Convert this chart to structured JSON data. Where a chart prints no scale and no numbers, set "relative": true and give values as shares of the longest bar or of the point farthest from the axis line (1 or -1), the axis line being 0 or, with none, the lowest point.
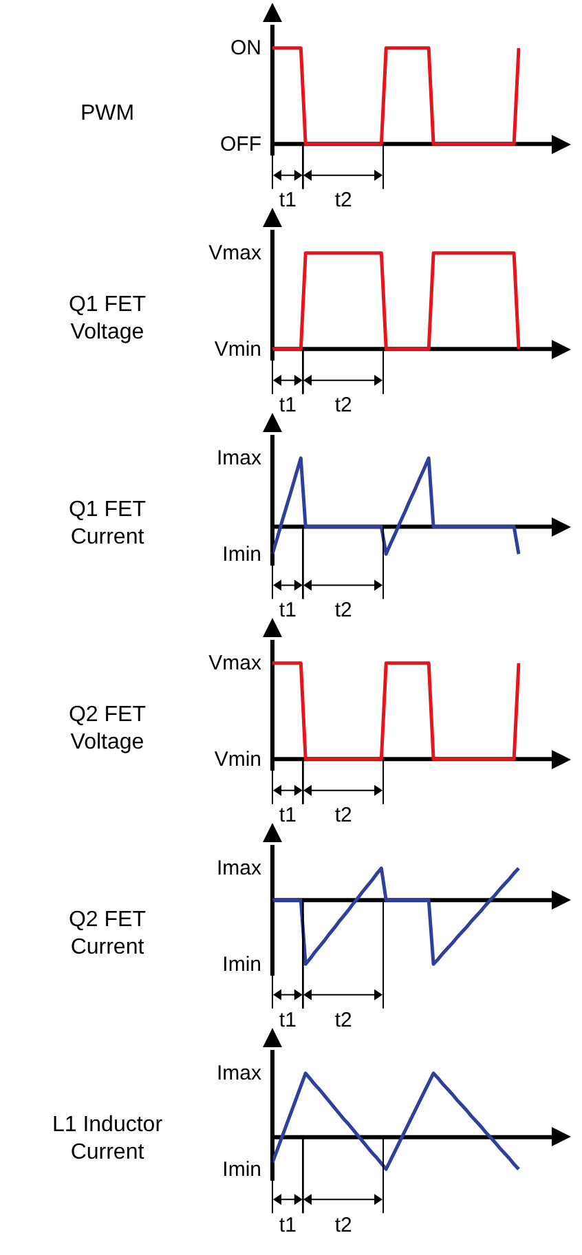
{
  "chart_data": [
    {
      "type": "line",
      "ylabel": "PWM",
      "categories": [
        null,
        null,
        null,
        null,
        null,
        null,
        null,
        null,
        null,
        null,
        null,
        null,
        null,
        null,
        null,
        null,
        null,
        null,
        null,
        null,
        null,
        null,
        null,
        null,
        null,
        null,
        null,
        null,
        null,
        null,
        null,
        null,
        null,
        null,
        null,
        null,
        null,
        null,
        null,
        null,
        null,
        null,
        null,
        null,
        null,
        null,
        null,
        null,
        null,
        null,
        null,
        null,
        null
      ],
      "relative": true,
      "tick_labels": false,
      "grid": false,
      "legend": false,
      "marker": "none",
      "annotations": [
        "ON",
        "OFF",
        "t1",
        "t2"
      ],
      "series": [
        {
          "color": "#e8141c",
          "values": [
            1,
            1,
            1,
            1,
            1,
            1,
            1,
            0,
            0,
            0,
            0,
            0,
            0,
            0,
            0,
            0,
            0,
            0,
            0,
            0,
            0,
            0,
            0,
            0,
            1,
            1,
            1,
            1,
            1,
            1,
            1,
            1,
            1,
            1,
            0,
            0,
            0,
            0,
            0,
            0,
            0,
            0,
            0,
            0,
            0,
            0,
            0,
            0,
            0,
            0,
            0,
            0,
            1
          ]
        }
      ]
    },
    {
      "type": "line",
      "ylabel": "Q1 FET Voltage",
      "categories": [
        null,
        null,
        null,
        null,
        null,
        null,
        null,
        null,
        null,
        null,
        null,
        null,
        null,
        null,
        null,
        null,
        null,
        null,
        null,
        null,
        null,
        null,
        null,
        null,
        null,
        null,
        null,
        null,
        null,
        null,
        null,
        null,
        null,
        null,
        null,
        null,
        null,
        null,
        null,
        null,
        null,
        null,
        null,
        null,
        null,
        null,
        null,
        null,
        null,
        null,
        null,
        null,
        null
      ],
      "relative": true,
      "tick_labels": false,
      "grid": false,
      "legend": false,
      "marker": "none",
      "annotations": [
        "Vmax",
        "Vmin",
        "t1",
        "t2"
      ],
      "series": [
        {
          "color": "#e8141c",
          "values": [
            0,
            0,
            0,
            0,
            0,
            0,
            0,
            1,
            1,
            1,
            1,
            1,
            1,
            1,
            1,
            1,
            1,
            1,
            1,
            1,
            1,
            1,
            1,
            1,
            0,
            0,
            0,
            0,
            0,
            0,
            0,
            0,
            0,
            0,
            1,
            1,
            1,
            1,
            1,
            1,
            1,
            1,
            1,
            1,
            1,
            1,
            1,
            1,
            1,
            1,
            1,
            1,
            0
          ]
        }
      ]
    },
    {
      "type": "line",
      "ylabel": "Q1 FET Current",
      "categories": [
        null,
        null,
        null,
        null,
        null,
        null,
        null,
        null,
        null,
        null,
        null,
        null,
        null,
        null,
        null,
        null,
        null,
        null,
        null,
        null,
        null,
        null,
        null,
        null,
        null,
        null,
        null,
        null,
        null,
        null,
        null,
        null,
        null,
        null,
        null,
        null,
        null,
        null,
        null,
        null,
        null,
        null,
        null,
        null,
        null,
        null,
        null,
        null,
        null,
        null,
        null,
        null,
        null
      ],
      "relative": true,
      "tick_labels": false,
      "grid": false,
      "legend": false,
      "marker": "none",
      "annotations": [
        "Imax",
        "Imin",
        "t1",
        "t2"
      ],
      "series": [
        {
          "color": "#2f3f9e",
          "values": [
            -0.4,
            -0.17,
            0.07,
            0.3,
            0.53,
            0.77,
            1,
            0,
            0,
            0,
            0,
            0,
            0,
            0,
            0,
            0,
            0,
            0,
            0,
            0,
            0,
            0,
            0,
            0,
            -0.4,
            -0.24,
            -0.09,
            0.07,
            0.22,
            0.38,
            0.53,
            0.69,
            0.84,
            1,
            0,
            0,
            0,
            0,
            0,
            0,
            0,
            0,
            0,
            0,
            0,
            0,
            0,
            0,
            0,
            0,
            0,
            0,
            -0.4
          ]
        }
      ]
    },
    {
      "type": "line",
      "ylabel": "Q2 FET Voltage",
      "categories": [
        null,
        null,
        null,
        null,
        null,
        null,
        null,
        null,
        null,
        null,
        null,
        null,
        null,
        null,
        null,
        null,
        null,
        null,
        null,
        null,
        null,
        null,
        null,
        null,
        null,
        null,
        null,
        null,
        null,
        null,
        null,
        null,
        null,
        null,
        null,
        null,
        null,
        null,
        null,
        null,
        null,
        null,
        null,
        null,
        null,
        null,
        null,
        null,
        null,
        null,
        null,
        null,
        null
      ],
      "relative": true,
      "tick_labels": false,
      "grid": false,
      "legend": false,
      "marker": "none",
      "annotations": [
        "Vmax",
        "Vmin",
        "t1",
        "t2"
      ],
      "series": [
        {
          "color": "#e8141c",
          "values": [
            1,
            1,
            1,
            1,
            1,
            1,
            1,
            0,
            0,
            0,
            0,
            0,
            0,
            0,
            0,
            0,
            0,
            0,
            0,
            0,
            0,
            0,
            0,
            0,
            1,
            1,
            1,
            1,
            1,
            1,
            1,
            1,
            1,
            1,
            0,
            0,
            0,
            0,
            0,
            0,
            0,
            0,
            0,
            0,
            0,
            0,
            0,
            0,
            0,
            0,
            0,
            0,
            1
          ]
        }
      ]
    },
    {
      "type": "line",
      "ylabel": "Q2 FET Current",
      "categories": [
        null,
        null,
        null,
        null,
        null,
        null,
        null,
        null,
        null,
        null,
        null,
        null,
        null,
        null,
        null,
        null,
        null,
        null,
        null,
        null,
        null,
        null,
        null,
        null,
        null,
        null,
        null,
        null,
        null,
        null,
        null,
        null,
        null,
        null,
        null,
        null,
        null,
        null,
        null,
        null,
        null,
        null,
        null,
        null,
        null,
        null,
        null,
        null,
        null,
        null,
        null,
        null,
        null
      ],
      "relative": true,
      "tick_labels": false,
      "grid": false,
      "legend": false,
      "marker": "none",
      "annotations": [
        "Imax",
        "Imin",
        "t1",
        "t2"
      ],
      "series": [
        {
          "color": "#2f3f9e",
          "values": [
            0,
            0,
            0,
            0,
            0,
            0,
            0,
            -1,
            -0.91,
            -0.81,
            -0.72,
            -0.63,
            -0.53,
            -0.44,
            -0.34,
            -0.25,
            -0.16,
            -0.06,
            0.03,
            0.13,
            0.22,
            0.31,
            0.41,
            0.5,
            0,
            0,
            0,
            0,
            0,
            0,
            0,
            0,
            0,
            0,
            -1,
            -0.92,
            -0.83,
            -0.75,
            -0.67,
            -0.58,
            -0.5,
            -0.42,
            -0.33,
            -0.25,
            -0.17,
            -0.08,
            0,
            0.08,
            0.17,
            0.25,
            0.33,
            0.42,
            0.5
          ]
        }
      ]
    },
    {
      "type": "line",
      "ylabel": "L1 Inductor Current",
      "categories": [
        null,
        null,
        null,
        null,
        null,
        null,
        null,
        null,
        null,
        null,
        null,
        null,
        null,
        null,
        null,
        null,
        null,
        null,
        null,
        null,
        null,
        null,
        null,
        null,
        null,
        null,
        null,
        null,
        null,
        null,
        null,
        null,
        null,
        null,
        null,
        null,
        null,
        null,
        null,
        null,
        null,
        null,
        null,
        null,
        null,
        null,
        null,
        null,
        null,
        null,
        null,
        null,
        null
      ],
      "relative": true,
      "tick_labels": false,
      "grid": false,
      "legend": false,
      "marker": "none",
      "annotations": [
        "Imax",
        "Imin",
        "t1",
        "t2"
      ],
      "series": [
        {
          "color": "#2f3f9e",
          "values": [
            -0.4,
            -0.2,
            0,
            0.2,
            0.4,
            0.6,
            0.8,
            1,
            0.91,
            0.82,
            0.74,
            0.65,
            0.56,
            0.47,
            0.38,
            0.29,
            0.21,
            0.12,
            0.03,
            -0.06,
            -0.15,
            -0.24,
            -0.32,
            -0.41,
            -0.5,
            -0.35,
            -0.2,
            -0.05,
            0.1,
            0.25,
            0.4,
            0.55,
            0.7,
            0.85,
            1,
            0.92,
            0.83,
            0.75,
            0.67,
            0.58,
            0.5,
            0.42,
            0.33,
            0.25,
            0.17,
            0.08,
            0,
            -0.08,
            -0.17,
            -0.25,
            -0.33,
            -0.42,
            -0.5
          ]
        }
      ]
    }
  ]
}
